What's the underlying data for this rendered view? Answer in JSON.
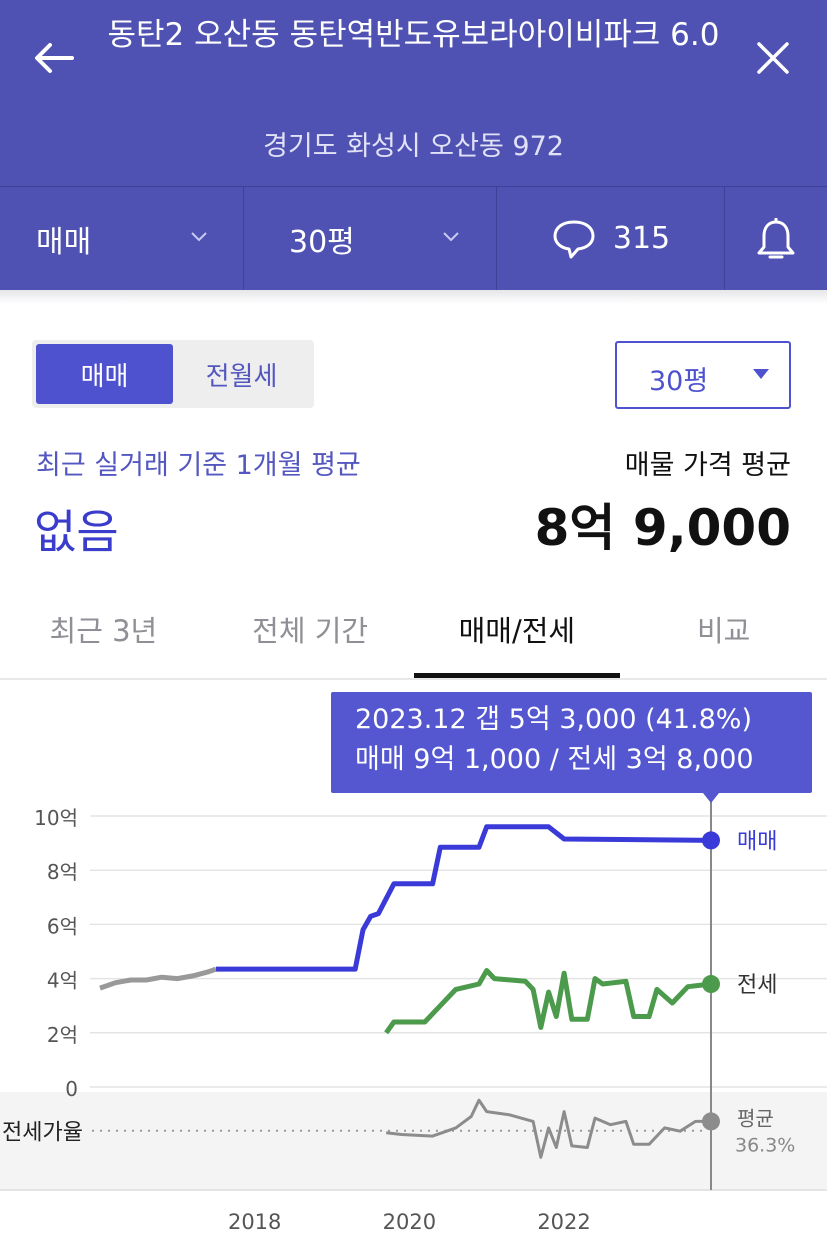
{
  "header": {
    "title": "동탄2 오산동 동탄역반도유보라아이비파크 6.0",
    "address": "경기도 화성시 오산동 972"
  },
  "filters": {
    "trade_type": "매매",
    "size": "30평",
    "comment_count": "315"
  },
  "toggle": {
    "sale": "매매",
    "lease": "전월세"
  },
  "size_select": "30평",
  "summary": {
    "recent_label": "최근 실거래 기준 1개월 평균",
    "recent_value": "없음",
    "ask_label": "매물 가격 평균",
    "ask_value": "8억 9,000"
  },
  "tabs": [
    "최근 3년",
    "전체 기간",
    "매매/전세",
    "비교"
  ],
  "tooltip": {
    "line1": "2023.12  갭 5억 3,000 (41.8%)",
    "line2": "매매 9억 1,000 / 전세 3억 8,000"
  },
  "colors": {
    "header_bg": "#4f52b2",
    "sale_line": "#3a3ad8",
    "lease_line": "#4c9a4c",
    "history_line": "#999999"
  },
  "chart_data": {
    "type": "line",
    "y_ticks": [
      "10억",
      "8억",
      "6억",
      "4억",
      "2억",
      "0"
    ],
    "x_ticks": [
      "2018",
      "2020",
      "2022"
    ],
    "ratio_label": "전세가율",
    "series": [
      {
        "name": "매매",
        "values_unit": "억",
        "points": [
          [
            2016.0,
            3.65
          ],
          [
            2016.2,
            3.85
          ],
          [
            2016.4,
            3.95
          ],
          [
            2016.6,
            3.95
          ],
          [
            2016.8,
            4.05
          ],
          [
            2017.0,
            4.0
          ],
          [
            2017.2,
            4.1
          ],
          [
            2017.4,
            4.25
          ],
          [
            2017.5,
            4.35
          ],
          [
            2017.6,
            4.35
          ],
          [
            2019.3,
            4.35
          ],
          [
            2019.4,
            5.8
          ],
          [
            2019.5,
            6.3
          ],
          [
            2019.6,
            6.4
          ],
          [
            2019.8,
            7.5
          ],
          [
            2020.3,
            7.5
          ],
          [
            2020.4,
            8.85
          ],
          [
            2020.9,
            8.85
          ],
          [
            2021.0,
            9.6
          ],
          [
            2021.8,
            9.6
          ],
          [
            2022.0,
            9.15
          ],
          [
            2023.9,
            9.1
          ]
        ]
      },
      {
        "name": "전세",
        "values_unit": "억",
        "points": [
          [
            2019.7,
            2.0
          ],
          [
            2019.8,
            2.4
          ],
          [
            2020.2,
            2.4
          ],
          [
            2020.4,
            3.0
          ],
          [
            2020.6,
            3.6
          ],
          [
            2020.9,
            3.8
          ],
          [
            2021.0,
            4.3
          ],
          [
            2021.1,
            4.0
          ],
          [
            2021.5,
            3.9
          ],
          [
            2021.6,
            3.6
          ],
          [
            2021.7,
            2.2
          ],
          [
            2021.8,
            3.5
          ],
          [
            2021.9,
            2.6
          ],
          [
            2022.0,
            4.2
          ],
          [
            2022.1,
            2.5
          ],
          [
            2022.3,
            2.5
          ],
          [
            2022.4,
            4.0
          ],
          [
            2022.5,
            3.8
          ],
          [
            2022.8,
            3.9
          ],
          [
            2022.9,
            2.6
          ],
          [
            2023.1,
            2.6
          ],
          [
            2023.2,
            3.6
          ],
          [
            2023.4,
            3.1
          ],
          [
            2023.6,
            3.7
          ],
          [
            2023.9,
            3.8
          ]
        ]
      },
      {
        "name": "평균",
        "label": "36.3%",
        "points": [
          [
            2019.7,
            35
          ],
          [
            2019.9,
            34
          ],
          [
            2020.3,
            33
          ],
          [
            2020.6,
            38
          ],
          [
            2020.8,
            45
          ],
          [
            2020.9,
            55
          ],
          [
            2021.0,
            48
          ],
          [
            2021.3,
            46
          ],
          [
            2021.6,
            42
          ],
          [
            2021.7,
            20
          ],
          [
            2021.8,
            38
          ],
          [
            2021.9,
            26
          ],
          [
            2022.0,
            48
          ],
          [
            2022.1,
            27
          ],
          [
            2022.3,
            26
          ],
          [
            2022.4,
            44
          ],
          [
            2022.6,
            40
          ],
          [
            2022.8,
            42
          ],
          [
            2022.9,
            28
          ],
          [
            2023.1,
            28
          ],
          [
            2023.3,
            38
          ],
          [
            2023.5,
            36
          ],
          [
            2023.7,
            42
          ],
          [
            2023.9,
            42
          ]
        ]
      }
    ],
    "xlim": [
      2016.0,
      2023.9
    ],
    "ylim": [
      0,
      10
    ],
    "legend": "right end of lines"
  }
}
